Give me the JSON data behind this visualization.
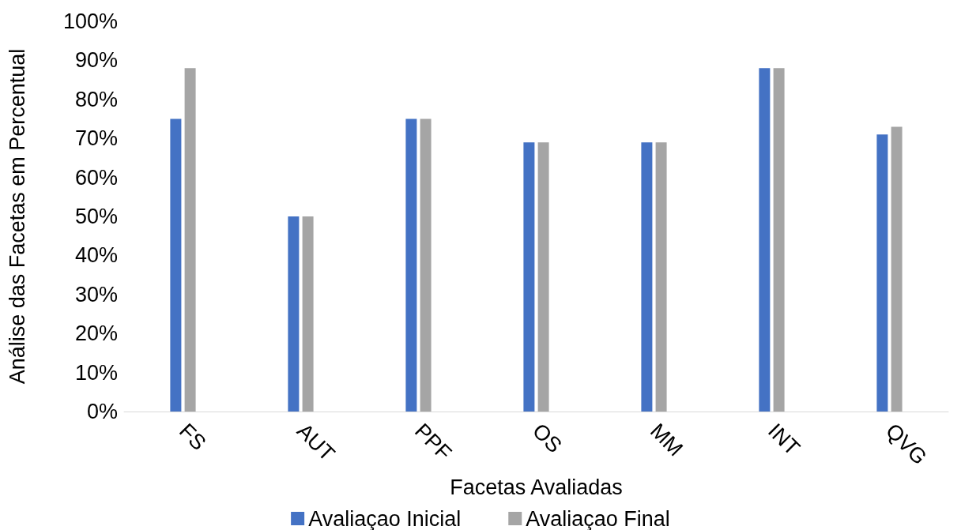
{
  "chart_data": {
    "type": "bar",
    "xlabel": "Facetas Avaliadas",
    "ylabel": "Análise das Facetas em Percentual",
    "categories": [
      "FS",
      "AUT",
      "PPF",
      "OS",
      "MM",
      "INT",
      "QVG"
    ],
    "series": [
      {
        "name": "Avaliaçao Inicial",
        "color": "#4472c4",
        "values": [
          75,
          50,
          75,
          69,
          69,
          88,
          71
        ]
      },
      {
        "name": "Avaliaçao Final",
        "color": "#a5a5a5",
        "values": [
          88,
          50,
          75,
          69,
          69,
          88,
          73
        ]
      }
    ],
    "ylim": [
      0,
      100
    ],
    "yticks": [
      {
        "value": 0,
        "label": "0%"
      },
      {
        "value": 10,
        "label": "10%"
      },
      {
        "value": 20,
        "label": "20%"
      },
      {
        "value": 30,
        "label": "30%"
      },
      {
        "value": 40,
        "label": "40%"
      },
      {
        "value": 50,
        "label": "50%"
      },
      {
        "value": 60,
        "label": "60%"
      },
      {
        "value": 70,
        "label": "70%"
      },
      {
        "value": 80,
        "label": "80%"
      },
      {
        "value": 90,
        "label": "90%"
      },
      {
        "value": 100,
        "label": "100%"
      }
    ],
    "grid": false,
    "legend": "bottom"
  }
}
